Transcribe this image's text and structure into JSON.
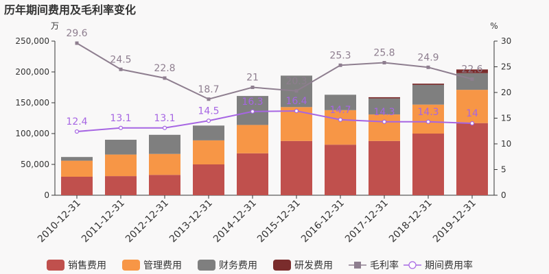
{
  "chart_data": {
    "type": "bar",
    "title": "历年期间费用及毛利率变化",
    "left_axis_unit": "万",
    "right_axis_unit": "%",
    "categories": [
      "2010-12-31",
      "2011-12-31",
      "2012-12-31",
      "2013-12-31",
      "2014-12-31",
      "2015-12-31",
      "2016-12-31",
      "2017-12-31",
      "2018-12-31",
      "2019-12-31"
    ],
    "left_ylim": [
      0,
      250000
    ],
    "left_ticks": [
      0,
      50000,
      100000,
      150000,
      200000,
      250000
    ],
    "left_tick_labels": [
      "0",
      "50,000",
      "100,000",
      "150,000",
      "200,000",
      "250,000"
    ],
    "right_ylim": [
      0,
      30
    ],
    "right_ticks": [
      0,
      5,
      10,
      15,
      20,
      25,
      30
    ],
    "right_tick_labels": [
      "0",
      "5",
      "10",
      "15",
      "20",
      "25",
      "30"
    ],
    "stacked_series": [
      {
        "name": "销售费用",
        "color": "#c0504d",
        "values": [
          30000,
          31000,
          33000,
          50000,
          68000,
          88000,
          82000,
          88000,
          100000,
          117000
        ]
      },
      {
        "name": "管理费用",
        "color": "#f79646",
        "values": [
          26000,
          35000,
          34000,
          39000,
          46000,
          55000,
          56000,
          43000,
          47000,
          54000
        ]
      },
      {
        "name": "财务费用",
        "color": "#7f7f7f",
        "values": [
          6000,
          24000,
          31000,
          24000,
          47000,
          51000,
          25000,
          26000,
          32000,
          27000
        ]
      },
      {
        "name": "研发费用",
        "color": "#7a2c2c",
        "values": [
          0,
          0,
          0,
          0,
          0,
          0,
          0,
          2000,
          2000,
          6000
        ]
      }
    ],
    "line_series": [
      {
        "name": "毛利率",
        "color": "#8e7e8f",
        "marker": "square",
        "values": [
          29.6,
          24.5,
          22.8,
          18.7,
          21,
          20.3,
          25.3,
          25.8,
          24.9,
          22.6
        ],
        "labels": [
          "29.6",
          "24.5",
          "22.8",
          "18.7",
          "21",
          "20.3",
          "25.3",
          "25.8",
          "24.9",
          "22.6"
        ]
      },
      {
        "name": "期间费用率",
        "color": "#a665e3",
        "marker": "circle",
        "values": [
          12.4,
          13.1,
          13.1,
          14.5,
          16.3,
          16.4,
          14.7,
          14.3,
          14.3,
          14
        ],
        "labels": [
          "12.4",
          "13.1",
          "13.1",
          "14.5",
          "16.3",
          "16.4",
          "14.7",
          "14.3",
          "14.3",
          "14"
        ]
      }
    ],
    "legend": [
      "销售费用",
      "管理费用",
      "财务费用",
      "研发费用",
      "毛利率",
      "期间费用率"
    ],
    "legend_position": "bottom",
    "grid": false
  }
}
